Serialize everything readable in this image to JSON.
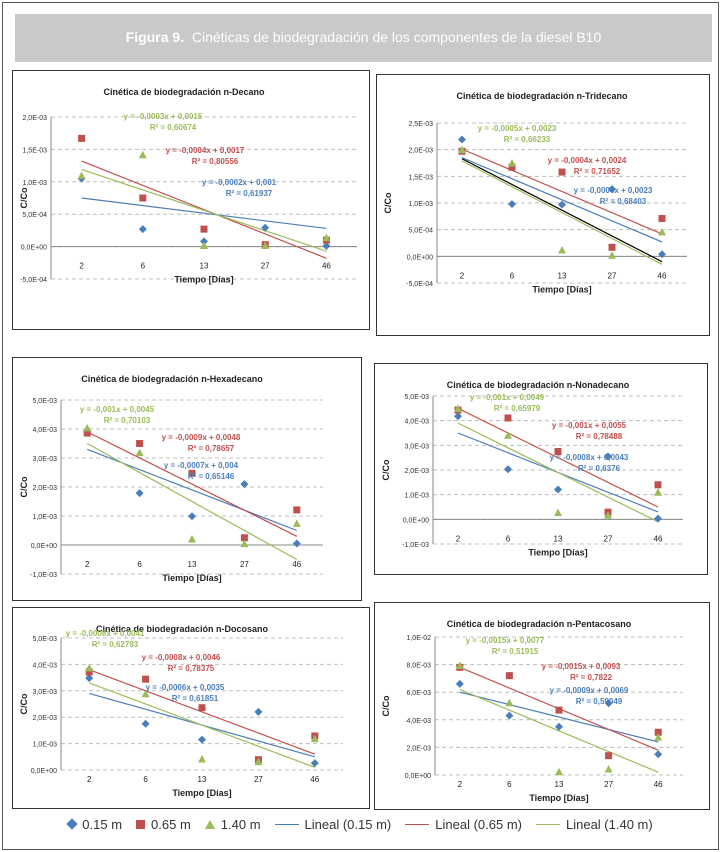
{
  "figure": {
    "label": "Figura 9.",
    "caption": "Cinéticas de biodegradación de los componentes de la diesel B10"
  },
  "colors": {
    "series_015": "#4a7ebb",
    "series_065": "#c0504d",
    "series_140": "#9bbb59",
    "extra_line": "#000000",
    "grid": "#bfbfbf"
  },
  "legend": {
    "items": [
      {
        "label": "0.15 m",
        "marker": "diamond-icon"
      },
      {
        "label": "0.65 m",
        "marker": "square-icon"
      },
      {
        "label": "1.40 m",
        "marker": "triangle-icon"
      },
      {
        "label": "Lineal (0.15 m)",
        "marker": "line-icon"
      },
      {
        "label": "Lineal (0.65 m)",
        "marker": "line-icon"
      },
      {
        "label": "Lineal (1.40 m)",
        "marker": "line-icon"
      }
    ]
  },
  "chart_data": [
    {
      "type": "scatter",
      "title": "Cinética de biodegradación  n-Decano",
      "xlabel": "Tiempo [Días]",
      "ylabel": "C/Co",
      "categories": [
        "2",
        "6",
        "13",
        "27",
        "46"
      ],
      "yticks": [
        "-5,0E-04",
        "0,0E+00",
        "5,0E-04",
        "1,0E-03",
        "1,5E-03",
        "2,0E-03"
      ],
      "ylim": [
        -0.0005,
        0.002
      ],
      "grid": true,
      "series": [
        {
          "name": "0.15 m",
          "values": [
            0.00105,
            0.00027,
            8e-05,
            0.00029,
            1e-05
          ],
          "trend": [
            0.00075,
            0.00028
          ],
          "equation": "y = -0,0002x + 0,001",
          "r2": "R² = 0,61937"
        },
        {
          "name": "0.65 m",
          "values": [
            0.00167,
            0.00075,
            0.00027,
            3e-05,
            0.0001
          ],
          "trend": [
            0.00132,
            -0.00018
          ],
          "equation": "y = -0,0004x + 0,0017",
          "r2": "R² = 0,80556"
        },
        {
          "name": "1.40 m",
          "values": [
            0.00109,
            0.00141,
            1e-05,
            1e-05,
            0.00013
          ],
          "trend": [
            0.00119,
            -7e-05
          ],
          "equation": "y = -0,0003x + 0,0015",
          "r2": "R² = 0,60674"
        }
      ]
    },
    {
      "type": "scatter",
      "title": "Cinética de biodegradación  n-Tridecano",
      "xlabel": "Tiempo [Días]",
      "ylabel": "C/Co",
      "categories": [
        "2",
        "6",
        "13",
        "27",
        "46"
      ],
      "yticks": [
        "-5,0E-04",
        "0,0E+00",
        "5,0E-04",
        "1,0E-03",
        "1,5E-03",
        "2,0E-03",
        "2,5E-03"
      ],
      "ylim": [
        -0.0005,
        0.0025
      ],
      "grid": true,
      "series": [
        {
          "name": "0.15 m",
          "values": [
            0.00219,
            0.00098,
            0.00097,
            0.00126,
            4e-05
          ],
          "trend": [
            0.00185,
            0.00027
          ],
          "equation": "y = -0,0004x + 0,0023",
          "r2": "R² = 0,68403"
        },
        {
          "name": "0.65 m",
          "values": [
            0.00197,
            0.00167,
            0.00158,
            0.00017,
            0.00071
          ],
          "trend": [
            0.00201,
            0.00042
          ],
          "equation": "y = -0,0004x + 0,0024",
          "r2": "R² = 0,71652"
        },
        {
          "name": "1.40 m",
          "values": [
            0.00199,
            0.00174,
            0.00011,
            1e-05,
            0.00045
          ],
          "trend": [
            0.00179,
            -0.00015
          ],
          "equation": "y = -0,0005x + 0,0023",
          "r2": "R² = 0,66233"
        }
      ]
    },
    {
      "type": "scatter",
      "title": "Cinética de biodegradación n-Hexadecano",
      "xlabel": "Tiempo [Días]",
      "ylabel": "C/Co",
      "categories": [
        "2",
        "6",
        "13",
        "27",
        "46"
      ],
      "yticks": [
        "-1,0E-03",
        "0,0E+00",
        "1,0E-03",
        "2,0E-03",
        "3,0E-03",
        "4,0E-03",
        "5,0E-03"
      ],
      "ylim": [
        -0.001,
        0.005
      ],
      "grid": true,
      "series": [
        {
          "name": "0.15 m",
          "values": [
            0.0039,
            0.00179,
            0.00099,
            0.0021,
            5e-05
          ],
          "trend": [
            0.0033,
            0.0005
          ],
          "equation": "y = -0,0007x + 0,004",
          "r2": "R² = 0,65146"
        },
        {
          "name": "0.65 m",
          "values": [
            0.00386,
            0.0035,
            0.00247,
            0.00025,
            0.00121
          ],
          "trend": [
            0.0039,
            0.0003
          ],
          "equation": "y = -0,0009x + 0,0048",
          "r2": "R² = 0,78657"
        },
        {
          "name": "1.40 m",
          "values": [
            0.00402,
            0.00317,
            0.00019,
            3e-05,
            0.00073
          ],
          "trend": [
            0.0035,
            -0.0005
          ],
          "equation": "y = -0,001x + 0,0045",
          "r2": "R² = 0,70103"
        }
      ]
    },
    {
      "type": "scatter",
      "title": "Cinética de biodegradación  n-Nonadecano",
      "xlabel": "Tiempo [Días]",
      "ylabel": "C/Co",
      "categories": [
        "2",
        "6",
        "13",
        "27",
        "46"
      ],
      "yticks": [
        "-1,0E-03",
        "0,0E+00",
        "1,0E-03",
        "2,0E-03",
        "3,0E-03",
        "4,0E-03",
        "5,0E-03"
      ],
      "ylim": [
        -0.001,
        0.005
      ],
      "grid": true,
      "series": [
        {
          "name": "0.15 m",
          "values": [
            0.00418,
            0.00203,
            0.00121,
            0.00255,
            3e-05
          ],
          "trend": [
            0.0035,
            0.0003
          ],
          "equation": "y = -0,0008x + 0,0043",
          "r2": "R² = 0,6376"
        },
        {
          "name": "0.65 m",
          "values": [
            0.00443,
            0.00411,
            0.00275,
            0.00029,
            0.0014
          ],
          "trend": [
            0.0045,
            0.0005
          ],
          "equation": "y = -0,001x + 0,0055",
          "r2": "R² = 0,78488"
        },
        {
          "name": "1.40 m",
          "values": [
            0.00447,
            0.00339,
            0.00025,
            0.00015,
            0.00108
          ],
          "trend": [
            0.0039,
            -0.0001
          ],
          "equation": "y = -0,001x + 0,0049",
          "r2": "R² = 0,65979"
        }
      ]
    },
    {
      "type": "scatter",
      "title": "Cinética de biodegradación n-Docosano",
      "xlabel": "Tiempo [Días]",
      "ylabel": "C/Co",
      "categories": [
        "2",
        "6",
        "13",
        "27",
        "46"
      ],
      "yticks": [
        "0,0E+00",
        "1,0E-03",
        "2,0E-03",
        "3,0E-03",
        "4,0E-03",
        "5,0E-03"
      ],
      "ylim": [
        0,
        0.005
      ],
      "grid": true,
      "series": [
        {
          "name": "0.15 m",
          "values": [
            0.00348,
            0.00175,
            0.00115,
            0.0022,
            0.00026
          ],
          "trend": [
            0.0029,
            0.0005
          ],
          "equation": "y = -0,0006x + 0,0035",
          "r2": "R² = 0,61851"
        },
        {
          "name": "0.65 m",
          "values": [
            0.00371,
            0.00344,
            0.00236,
            0.00039,
            0.00129
          ],
          "trend": [
            0.0038,
            0.0006
          ],
          "equation": "y = -0,0008x + 0,0046",
          "r2": "R² = 0,78375"
        },
        {
          "name": "1.40 m",
          "values": [
            0.00385,
            0.00287,
            0.0004,
            0.0003,
            0.00117
          ],
          "trend": [
            0.0033,
            0.0001
          ],
          "equation": "y = -0,0008x + 0,0041",
          "r2": "R² = 0,62793"
        }
      ]
    },
    {
      "type": "scatter",
      "title": "Cinética de biodegradación  n-Pentacosano",
      "xlabel": "Tiempo [Días]",
      "ylabel": "C/Co",
      "categories": [
        "2",
        "6",
        "13",
        "27",
        "46"
      ],
      "yticks": [
        "0,0E+00",
        "2,0E-03",
        "4,0E-03",
        "6,0E-03",
        "8,0E-03",
        "1,0E-02"
      ],
      "ylim": [
        0,
        0.01
      ],
      "grid": true,
      "series": [
        {
          "name": "0.15 m",
          "values": [
            0.0066,
            0.0043,
            0.0035,
            0.0052,
            0.0015
          ],
          "trend": [
            0.006,
            0.0024
          ],
          "equation": "y = -0,0009x + 0,0069",
          "r2": "R² = 0,59049"
        },
        {
          "name": "0.65 m",
          "values": [
            0.0078,
            0.0072,
            0.0047,
            0.0014,
            0.0031
          ],
          "trend": [
            0.0078,
            0.0018
          ],
          "equation": "y = -0,0015x + 0,0093",
          "r2": "R² = 0,7822"
        },
        {
          "name": "1.40 m",
          "values": [
            0.0079,
            0.0052,
            0.0002,
            0.0004,
            0.0027
          ],
          "trend": [
            0.0062,
            0.0002
          ],
          "equation": "y = -0,0015x + 0,0077",
          "r2": "R² = 0,51915"
        }
      ]
    }
  ]
}
